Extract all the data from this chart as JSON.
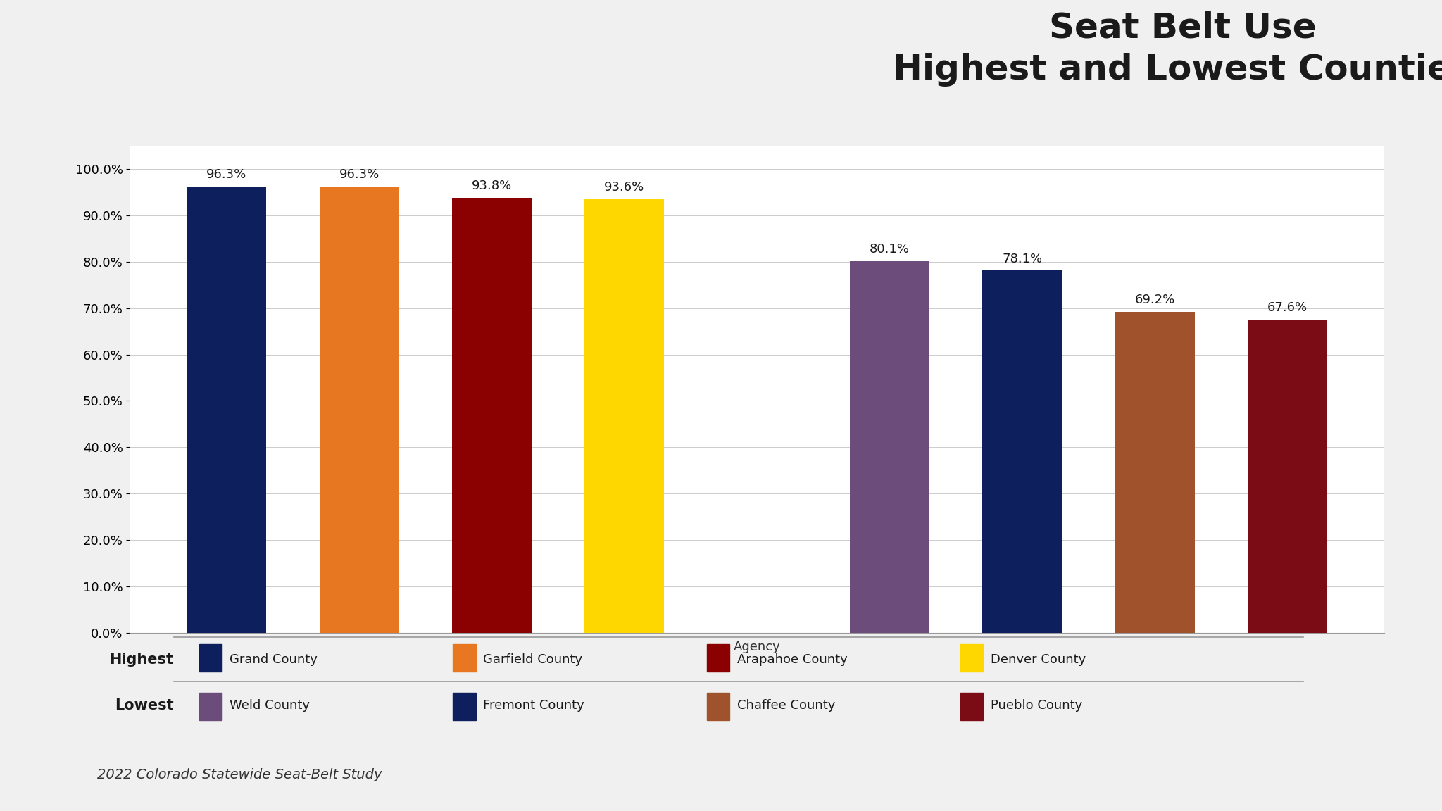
{
  "title": "Seat Belt Use\nHighest and Lowest Counties",
  "xlabel": "Agency",
  "ylabel": "",
  "background_color": "#f0f0f0",
  "plot_bg_color": "#ffffff",
  "orange_bar_color": "#E87722",
  "categories": [
    "Grand County",
    "Garfield County",
    "Arapahoe County",
    "Denver County",
    "",
    "Weld County",
    "Fremont County",
    "Chaffee County",
    "Pueblo County"
  ],
  "values": [
    96.3,
    96.3,
    93.8,
    93.6,
    0,
    80.1,
    78.1,
    69.2,
    67.6
  ],
  "bar_colors": [
    "#0D1F5C",
    "#E87722",
    "#8B0000",
    "#FFD700",
    "#ffffff",
    "#6B4C7A",
    "#0D1F5C",
    "#A0522D",
    "#7B0C16"
  ],
  "ylim": [
    0,
    105
  ],
  "ytick_labels": [
    "0.0%",
    "10.0%",
    "20.0%",
    "30.0%",
    "40.0%",
    "50.0%",
    "60.0%",
    "70.0%",
    "80.0%",
    "90.0%",
    "100.0%"
  ],
  "ytick_values": [
    0,
    10,
    20,
    30,
    40,
    50,
    60,
    70,
    80,
    90,
    100
  ],
  "title_fontsize": 36,
  "label_fontsize": 13,
  "tick_fontsize": 13,
  "value_fontsize": 13,
  "legend_fontsize": 13,
  "footnote": "2022 Colorado Statewide Seat-Belt Study",
  "footnote_fontsize": 14,
  "header_orange_bar_color": "#E87722",
  "header_bg_color": "#e8e8e8",
  "legend_highest_label": "Highest",
  "legend_lowest_label": "Lowest",
  "legend_highest_entries": [
    {
      "label": "Grand County",
      "color": "#0D1F5C"
    },
    {
      "label": "Garfield County",
      "color": "#E87722"
    },
    {
      "label": "Arapahoe County",
      "color": "#8B0000"
    },
    {
      "label": "Denver County",
      "color": "#FFD700"
    }
  ],
  "legend_lowest_entries": [
    {
      "label": "Weld County",
      "color": "#6B4C7A"
    },
    {
      "label": "Fremont County",
      "color": "#0D1F5C"
    },
    {
      "label": "Chaffee County",
      "color": "#A0522D"
    },
    {
      "label": "Pueblo County",
      "color": "#7B0C16"
    }
  ]
}
